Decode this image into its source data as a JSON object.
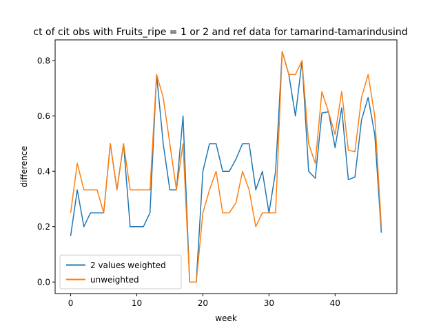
{
  "chart_data": {
    "type": "line",
    "title": "ct of cit obs with Fruits_ripe = 1 or 2 and ref data for tamarind-tamarindusind",
    "xlabel": "week",
    "ylabel": "difference",
    "xlim": [
      -2.35,
      49.35
    ],
    "ylim": [
      -0.0417,
      0.875
    ],
    "xticks": [
      0,
      10,
      20,
      30,
      40
    ],
    "yticks": [
      0.0,
      0.2,
      0.4,
      0.6,
      0.8
    ],
    "xtick_labels": [
      "0",
      "10",
      "20",
      "30",
      "40"
    ],
    "ytick_labels": [
      "0.0",
      "0.2",
      "0.4",
      "0.6",
      "0.8"
    ],
    "legend_position": "lower-left",
    "series": [
      {
        "name": "2 values weighted",
        "color": "#1f77b4",
        "x": [
          0,
          1,
          2,
          3,
          4,
          5,
          6,
          7,
          8,
          9,
          10,
          11,
          12,
          13,
          14,
          15,
          16,
          17,
          18,
          19,
          20,
          21,
          22,
          23,
          24,
          25,
          26,
          27,
          28,
          29,
          30,
          31,
          32,
          33,
          34,
          35,
          36,
          37,
          38,
          39,
          40,
          41,
          42,
          43,
          44,
          45,
          46,
          47
        ],
        "values": [
          0.167,
          0.333,
          0.2,
          0.25,
          0.25,
          0.25,
          0.5,
          0.333,
          0.5,
          0.2,
          0.2,
          0.2,
          0.25,
          0.75,
          0.5,
          0.333,
          0.333,
          0.6,
          0.0,
          0.0,
          0.4,
          0.5,
          0.5,
          0.4,
          0.4,
          0.444,
          0.5,
          0.5,
          0.333,
          0.4,
          0.25,
          0.4,
          0.833,
          0.75,
          0.6,
          0.8,
          0.4,
          0.375,
          0.611,
          0.615,
          0.486,
          0.629,
          0.37,
          0.379,
          0.586,
          0.667,
          0.533,
          0.178
        ]
      },
      {
        "name": "unweighted",
        "color": "#ff7f0e",
        "x": [
          0,
          1,
          2,
          3,
          4,
          5,
          6,
          7,
          8,
          9,
          10,
          11,
          12,
          13,
          14,
          15,
          16,
          17,
          18,
          19,
          20,
          21,
          22,
          23,
          24,
          25,
          26,
          27,
          28,
          29,
          30,
          31,
          32,
          33,
          34,
          35,
          36,
          37,
          38,
          39,
          40,
          41,
          42,
          43,
          44,
          45,
          46,
          47
        ],
        "values": [
          0.25,
          0.429,
          0.333,
          0.333,
          0.333,
          0.25,
          0.5,
          0.333,
          0.5,
          0.333,
          0.333,
          0.333,
          0.333,
          0.75,
          0.667,
          0.5,
          0.333,
          0.5,
          0.0,
          0.0,
          0.25,
          0.333,
          0.4,
          0.25,
          0.25,
          0.286,
          0.4,
          0.333,
          0.2,
          0.25,
          0.25,
          0.25,
          0.833,
          0.75,
          0.75,
          0.8,
          0.5,
          0.429,
          0.688,
          0.615,
          0.533,
          0.688,
          0.476,
          0.471,
          0.667,
          0.75,
          0.6,
          0.2
        ]
      }
    ]
  }
}
